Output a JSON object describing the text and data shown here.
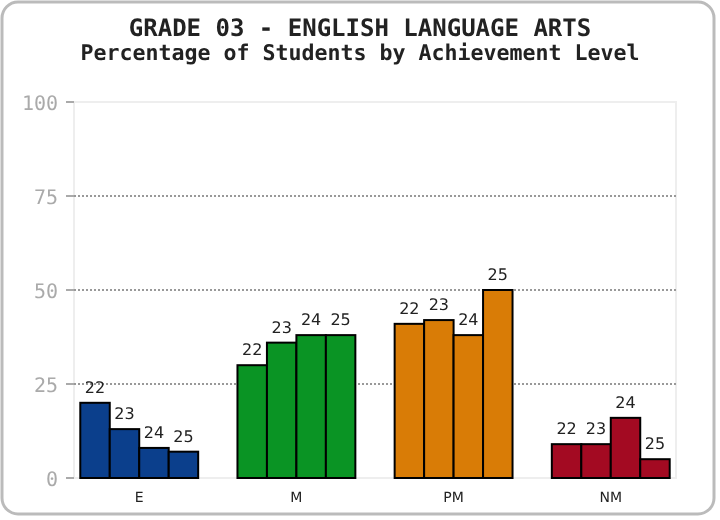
{
  "chart_data": {
    "type": "bar",
    "title": "GRADE 03 - ENGLISH LANGUAGE ARTS",
    "subtitle": "Percentage of Students by Achievement Level",
    "categories": [
      "E",
      "M",
      "PM",
      "NM"
    ],
    "series": [
      {
        "name": "22",
        "colors": [
          "#0b3f8c",
          "#0a9424",
          "#d97c06",
          "#a30a22"
        ],
        "values": [
          20,
          30,
          41,
          9
        ]
      },
      {
        "name": "23",
        "colors": [
          "#0b3f8c",
          "#0a9424",
          "#d97c06",
          "#a30a22"
        ],
        "values": [
          13,
          36,
          42,
          9
        ]
      },
      {
        "name": "24",
        "colors": [
          "#0b3f8c",
          "#0a9424",
          "#d97c06",
          "#a30a22"
        ],
        "values": [
          8,
          38,
          38,
          16
        ]
      },
      {
        "name": "25",
        "colors": [
          "#0b3f8c",
          "#0a9424",
          "#d97c06",
          "#a30a22"
        ],
        "values": [
          7,
          38,
          50,
          5
        ]
      }
    ],
    "ylim": [
      0,
      100
    ],
    "yticks": [
      0,
      25,
      50,
      75,
      100
    ],
    "grid": "y"
  }
}
